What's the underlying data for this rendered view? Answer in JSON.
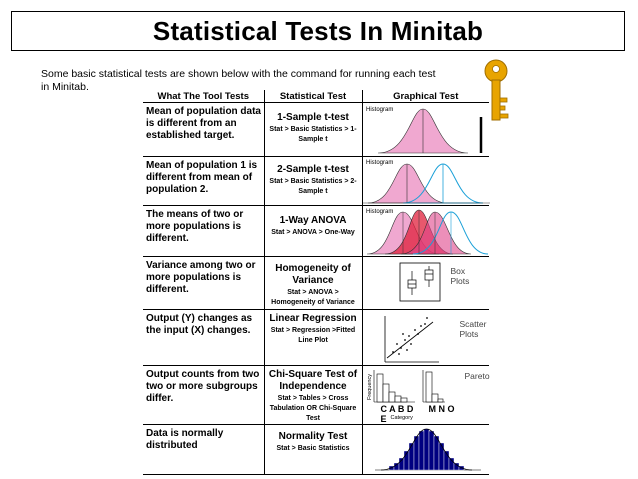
{
  "title": "Statistical Tests In Minitab",
  "intro": "Some basic statistical tests are shown below with the command for running each test in Minitab.",
  "table": {
    "headers": {
      "tool": "What The Tool Tests",
      "test": "Statistical Test",
      "graph": "Graphical Test"
    },
    "rows": [
      {
        "description": "Mean of population data is different from an established target.",
        "test_name": "1-Sample t-test",
        "command": "Stat > Basic Statistics > 1-Sample t",
        "graph_label": "Histogram"
      },
      {
        "description": "Mean of population 1 is different from mean of population 2.",
        "test_name": "2-Sample t-test",
        "command": "Stat > Basic Statistics > 2-Sample t",
        "graph_label": "Histogram"
      },
      {
        "description": "The means of two or more populations is different.",
        "test_name": "1-Way ANOVA",
        "command": "Stat > ANOVA > One-Way",
        "graph_label": "Histogram"
      },
      {
        "description": "Variance among two or more populations is different.",
        "test_name": "Homogeneity of Variance",
        "command": "Stat > ANOVA > Homogeneity of Variance",
        "graph_label": "Box Plots"
      },
      {
        "description": "Output (Y) changes as the input (X) changes.",
        "test_name": "Linear Regression",
        "command": "Stat > Regression >Fitted Line Plot",
        "graph_label": "Scatter Plots"
      },
      {
        "description": "Output counts from two two or more subgroups differ.",
        "test_name": "Chi-Square Test of Independence",
        "command": "Stat > Tables > Cross Tabulation OR Chi-Square Test",
        "graph_label": "Pareto",
        "y_axis_label": "Frequency",
        "category_letters_1": "C A B D E",
        "category_letters_2": "M N O",
        "x_axis_label": "Category"
      },
      {
        "description": "Data is normally distributed",
        "test_name": "Normality Test",
        "command": "Stat > Basic Statistics",
        "graph_label": ""
      }
    ]
  },
  "colors": {
    "pink": "#f0a8d0",
    "magenta": "#e0458a",
    "red": "#e0203c",
    "blue_line": "#1aa0d8",
    "navy": "#000080",
    "key_gold": "#e8a400"
  }
}
